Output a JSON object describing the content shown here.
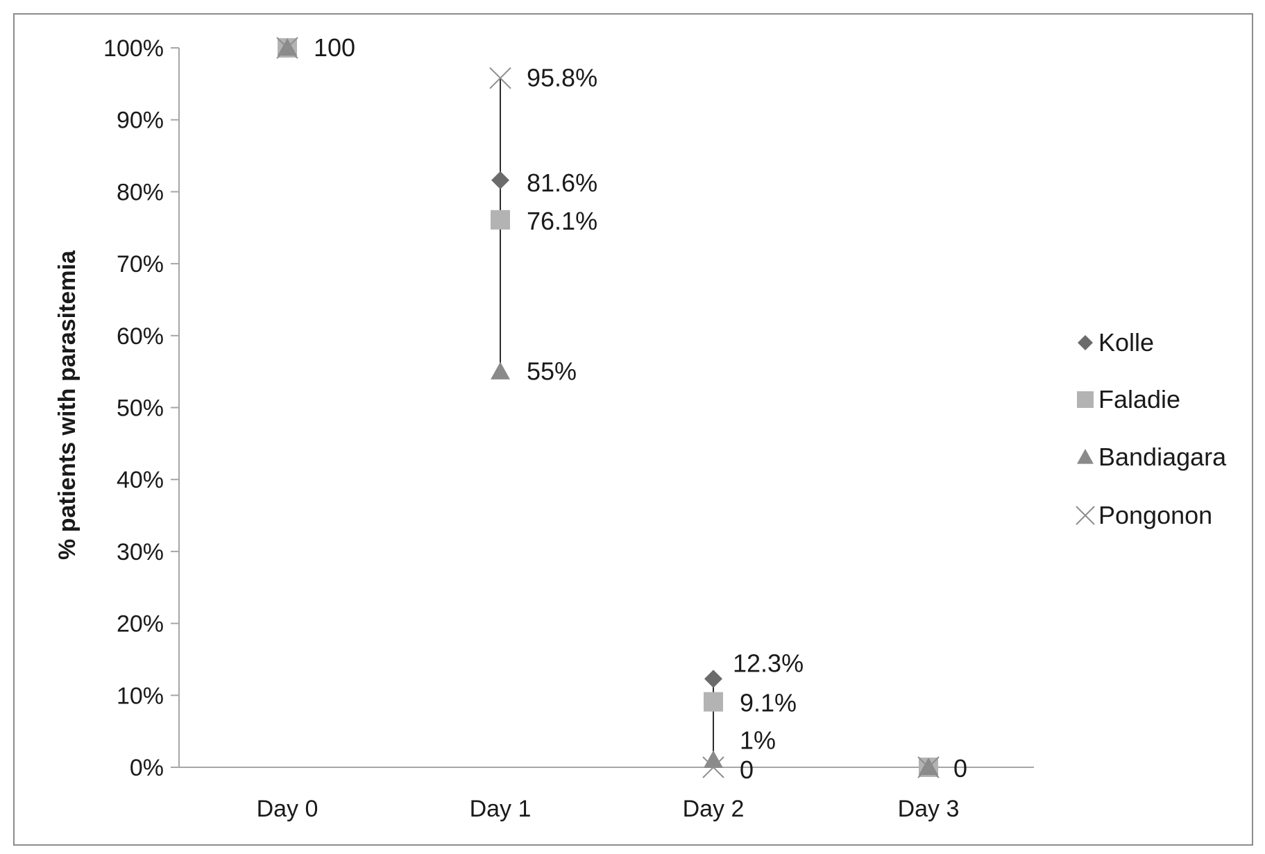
{
  "colors": {
    "frame": "#8c8c8c",
    "axis": "#a6a6a6",
    "text": "#1a1a1a",
    "kolle": "#6b6b6b",
    "faladie": "#b3b3b3",
    "bandiagara": "#8a8a8a",
    "pongonon": "#8e8e8e",
    "range_line": "#2b2b2b"
  },
  "chart_data": {
    "type": "scatter",
    "ylabel": "% patients with parasitemia",
    "xlabel": "",
    "categories": [
      "Day 0",
      "Day 1",
      "Day 2",
      "Day 3"
    ],
    "y_ticks": [
      "0%",
      "10%",
      "20%",
      "30%",
      "40%",
      "50%",
      "60%",
      "70%",
      "80%",
      "90%",
      "100%"
    ],
    "ylim": [
      0,
      100
    ],
    "grid": false,
    "legend_position": "right",
    "series": [
      {
        "name": "Kolle",
        "marker": "diamond",
        "values": [
          100,
          81.6,
          12.3,
          0
        ]
      },
      {
        "name": "Faladie",
        "marker": "square",
        "values": [
          100,
          76.1,
          9.1,
          0
        ]
      },
      {
        "name": "Bandiagara",
        "marker": "triangle",
        "values": [
          100,
          55,
          1,
          0
        ]
      },
      {
        "name": "Pongonon",
        "marker": "x",
        "values": [
          100,
          95.8,
          0,
          0
        ]
      }
    ],
    "data_labels": [
      {
        "category": 0,
        "y": 100,
        "text": "100"
      },
      {
        "category": 1,
        "y": 95.8,
        "text": "95.8%"
      },
      {
        "category": 1,
        "y": 81.6,
        "text": "81.6%"
      },
      {
        "category": 1,
        "y": 76.1,
        "text": "76.1%"
      },
      {
        "category": 1,
        "y": 55,
        "text": "55%"
      },
      {
        "category": 2,
        "y": 12.3,
        "text": "12.3%"
      },
      {
        "category": 2,
        "y": 9.1,
        "text": "9.1%"
      },
      {
        "category": 2,
        "y": 1,
        "text": "1%"
      },
      {
        "category": 2,
        "y": 0,
        "text": "0"
      },
      {
        "category": 3,
        "y": 0,
        "text": "0"
      }
    ],
    "range_lines": [
      {
        "category": 1,
        "from": 55,
        "to": 95.8
      },
      {
        "category": 2,
        "from": 0,
        "to": 12.3
      }
    ]
  }
}
